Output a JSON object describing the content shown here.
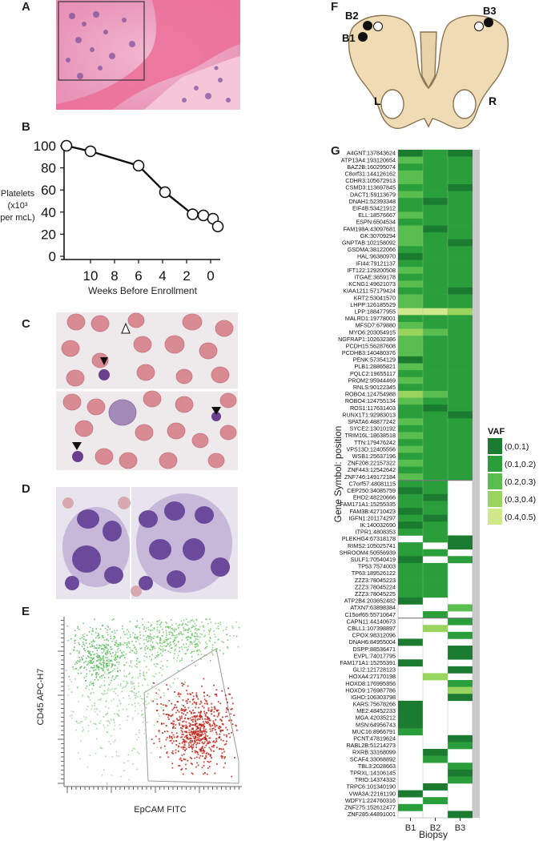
{
  "panels": {
    "a": "A",
    "b": "B",
    "c": "C",
    "d": "D",
    "e": "E",
    "f": "F",
    "g": "G"
  },
  "colors": {
    "he_pink": "#e98fb4",
    "he_bone": "#ee6f9a",
    "blood_bg": "#eeeaec",
    "rbc": "#d98b93",
    "stain_purple": "#7d5aa3",
    "flow_green": "#5cbf58",
    "flow_red": "#cc2a1e",
    "pelvis": "#efdcb5",
    "pelvis_stroke": "#8a7250"
  },
  "chart_b": {
    "type": "line",
    "ylabel_lines": [
      "Platelets",
      "(x10³",
      "per mcL)"
    ],
    "xlabel": "Weeks Before Enrollment",
    "yticks": [
      "100",
      "80",
      "60",
      "40",
      "20",
      "0"
    ],
    "xticks": [
      "10",
      "8",
      "6",
      "4",
      "2",
      "0"
    ],
    "ylim": [
      0,
      100
    ],
    "x_reversed": true
  },
  "chart_data": [
    {
      "type": "line",
      "xlabel": "Weeks Before Enrollment",
      "ylabel": "Platelets (x10³ per mcL)",
      "xlim": [
        -12.2,
        0.8
      ],
      "ylim": [
        0,
        100
      ],
      "x": [
        -12,
        -10,
        -6,
        -3.8,
        -1.5,
        -0.6,
        0.2,
        0.6
      ],
      "y": [
        100,
        95,
        82,
        58,
        38,
        37,
        34,
        27
      ]
    },
    {
      "type": "heatmap",
      "ylabel": "Gene Symbol: position",
      "xlabel": "Biopsy",
      "columns": [
        "B1",
        "B2",
        "B3"
      ],
      "legend_title": "VAF",
      "legend": [
        "(0,0.1)",
        "(0.1,0.2)",
        "(0.2,0.3)",
        "(0.3,0.4)",
        "(0.4,0.5)"
      ],
      "legend_colors": [
        "#1a7b31",
        "#2a9e3b",
        "#59bd50",
        "#98d45e",
        "#cfe88c"
      ],
      "group_boundaries_after_row": [
        48,
        68
      ],
      "genes": [
        "A4GNT:137843624",
        "ATP13A4:193120654",
        "BAZ2B:160295074",
        "C8orf31:144126162",
        "CDHR3:105672913",
        "CSMD3:113697845",
        "DACT1:59113679",
        "DNAH1:52393348",
        "EIF4B:53421912",
        "ELL:18576667",
        "ESPN:6504534",
        "FAM198A:43097681",
        "GK:30709294",
        "GNPTAB:102158092",
        "GSDMA:38122066",
        "HAL:96380970",
        "IFI44:79121137",
        "IFT122:129200508",
        "ITGAE:3659178",
        "KCNG1:49621073",
        "KIAA1211:57179424",
        "KRT2:53041570",
        "LHPP:126185529",
        "LPP:188477955",
        "MALRD1:19778001",
        "MFSD7:679880",
        "MYO6:203054915",
        "NGFRAP1:102632386",
        "PCDH15:56287608",
        "PCDHB3:140480376",
        "PENK:57354129",
        "PLB1:28865821",
        "PQLC2:19655117",
        "PROM2:95944469",
        "RNLS:90122345",
        "ROBO4:124754988",
        "ROBO4:124755134",
        "ROS1:117631403",
        "RUNX1T1:92983013",
        "SPATA6:48877242",
        "SYCE2:13010192",
        "TRIM16L:18638518",
        "TTN:179476242",
        "VPS13D:12405556",
        "WSB1:25637196",
        "ZNF208:22157322",
        "ZNF443:12542642",
        "ZNF746:149172184",
        "C7orf57:48081115",
        "CEP250:34085759",
        "EHD2:48220666",
        "FAM171A1:15255335",
        "FAM3B:42710423",
        "IGFN1:201174297",
        "IK:140032690",
        "ITPR1:4808353",
        "PLEKHG4:67318178",
        "RIMS2:105025741",
        "SHROOM4:50556939",
        "SULF1:70540419",
        "TP53:7574003",
        "TP63:189526122",
        "ZZZ3:78045223",
        "ZZZ3:78045224",
        "ZZZ3:78045225",
        "ATP2B4:203652482",
        "ATXN7:63898384",
        "C15orf65:55710647",
        "CAPN11:44140673",
        "CBLL1:107398897",
        "CPOX:98312096",
        "DNAH6:84955004",
        "DSPP:88536471",
        "EVPL:74017795",
        "FAM171A1:15255391",
        "GLI2:121728123",
        "HOXA4:27170198",
        "HOXD8:176995356",
        "HOXD9:176987786",
        "IGHD:106303798",
        "KARS:75678266",
        "ME2:48452233",
        "MGA:42035212",
        "MSN:64956743",
        "MUC16:8966791",
        "PCNT:47819624",
        "RABL2B:51214273",
        "RXRB:33168099",
        "SCAF4:33068892",
        "TBL3:2028663",
        "TPRXL:14106145",
        "TRIO:14374332",
        "TRPC6:101340190",
        "VWA3A:22161190",
        "WDFY1:224760316",
        "ZNF275:152612477",
        "ZNF285:44891001"
      ],
      "values": [
        [
          0,
          1,
          0
        ],
        [
          2,
          1,
          1
        ],
        [
          1,
          1,
          1
        ],
        [
          2,
          1,
          1
        ],
        [
          2,
          1,
          1
        ],
        [
          1,
          1,
          0
        ],
        [
          2,
          1,
          1
        ],
        [
          1,
          0,
          1
        ],
        [
          1,
          1,
          1
        ],
        [
          2,
          1,
          1
        ],
        [
          1,
          1,
          1
        ],
        [
          2,
          0,
          1
        ],
        [
          2,
          1,
          1
        ],
        [
          2,
          1,
          0
        ],
        [
          1,
          1,
          1
        ],
        [
          0,
          1,
          1
        ],
        [
          1,
          1,
          1
        ],
        [
          2,
          1,
          1
        ],
        [
          1,
          1,
          1
        ],
        [
          2,
          1,
          1
        ],
        [
          1,
          1,
          0
        ],
        [
          2,
          1,
          1
        ],
        [
          2,
          1,
          1
        ],
        [
          4,
          4,
          3
        ],
        [
          1,
          1,
          1
        ],
        [
          2,
          1,
          1
        ],
        [
          3,
          2,
          1
        ],
        [
          2,
          1,
          1
        ],
        [
          2,
          1,
          1
        ],
        [
          2,
          1,
          1
        ],
        [
          0,
          1,
          1
        ],
        [
          2,
          1,
          1
        ],
        [
          1,
          1,
          1
        ],
        [
          2,
          1,
          1
        ],
        [
          1,
          1,
          1
        ],
        [
          3,
          2,
          1
        ],
        [
          2,
          1,
          1
        ],
        [
          1,
          0,
          1
        ],
        [
          1,
          1,
          0
        ],
        [
          2,
          1,
          1
        ],
        [
          1,
          1,
          1
        ],
        [
          2,
          1,
          1
        ],
        [
          1,
          1,
          1
        ],
        [
          2,
          1,
          1
        ],
        [
          1,
          1,
          1
        ],
        [
          2,
          1,
          1
        ],
        [
          1,
          1,
          1
        ],
        [
          2,
          1,
          1
        ],
        [
          1,
          1,
          -1
        ],
        [
          0,
          1,
          -1
        ],
        [
          1,
          0,
          -1
        ],
        [
          1,
          1,
          -1
        ],
        [
          0,
          1,
          -1
        ],
        [
          1,
          0,
          -1
        ],
        [
          0,
          1,
          -1
        ],
        [
          1,
          1,
          -1
        ],
        [
          -1,
          1,
          0
        ],
        [
          1,
          -1,
          0
        ],
        [
          1,
          1,
          -1
        ],
        [
          0,
          -1,
          1
        ],
        [
          1,
          1,
          -1
        ],
        [
          1,
          1,
          -1
        ],
        [
          1,
          1,
          -1
        ],
        [
          1,
          1,
          -1
        ],
        [
          1,
          1,
          -1
        ],
        [
          0,
          -1,
          -1
        ],
        [
          -1,
          -1,
          2
        ],
        [
          -1,
          1,
          -1
        ],
        [
          -1,
          -1,
          1
        ],
        [
          -1,
          3,
          -1
        ],
        [
          -1,
          -1,
          1
        ],
        [
          0,
          -1,
          -1
        ],
        [
          -1,
          -1,
          0
        ],
        [
          -1,
          -1,
          0
        ],
        [
          0,
          -1,
          -1
        ],
        [
          -1,
          -1,
          0
        ],
        [
          -1,
          3,
          -1
        ],
        [
          -1,
          -1,
          1
        ],
        [
          -1,
          -1,
          3
        ],
        [
          -1,
          -1,
          0
        ],
        [
          0,
          -1,
          -1
        ],
        [
          0,
          -1,
          -1
        ],
        [
          0,
          -1,
          -1
        ],
        [
          0,
          -1,
          -1
        ],
        [
          1,
          -1,
          -1
        ],
        [
          -1,
          -1,
          0
        ],
        [
          -1,
          -1,
          1
        ],
        [
          -1,
          0,
          -1
        ],
        [
          -1,
          1,
          -1
        ],
        [
          -1,
          -1,
          1
        ],
        [
          -1,
          -1,
          0
        ],
        [
          -1,
          -1,
          1
        ],
        [
          -1,
          0,
          -1
        ],
        [
          0,
          -1,
          -1
        ],
        [
          -1,
          1,
          -1
        ],
        [
          1,
          -1,
          -1
        ],
        [
          -1,
          -1,
          0
        ]
      ]
    }
  ],
  "pelvis": {
    "labels": {
      "b2": "B2",
      "b1": "B1",
      "b3": "B3",
      "left": "L",
      "right": "R"
    }
  },
  "flow": {
    "ylabel": "CD45 APC-H7",
    "xlabel": "EpCAM FITC"
  }
}
